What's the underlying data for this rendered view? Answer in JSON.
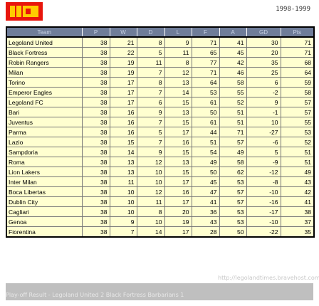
{
  "header": {
    "season": "1998-1999",
    "logo_colors": [
      "#e8160c",
      "#ffcc00"
    ]
  },
  "table": {
    "columns": [
      "Team",
      "P",
      "W",
      "D",
      "L",
      "F",
      "A",
      "GD",
      "Pts"
    ],
    "rows": [
      {
        "team": "Legoland United",
        "p": 38,
        "w": 21,
        "d": 8,
        "l": 9,
        "f": 71,
        "a": 41,
        "gd": 30,
        "pts": 71
      },
      {
        "team": "Black Fortress",
        "p": 38,
        "w": 22,
        "d": 5,
        "l": 11,
        "f": 65,
        "a": 45,
        "gd": 20,
        "pts": 71
      },
      {
        "team": "Robin Rangers",
        "p": 38,
        "w": 19,
        "d": 11,
        "l": 8,
        "f": 77,
        "a": 42,
        "gd": 35,
        "pts": 68
      },
      {
        "team": "Milan",
        "p": 38,
        "w": 19,
        "d": 7,
        "l": 12,
        "f": 71,
        "a": 46,
        "gd": 25,
        "pts": 64
      },
      {
        "team": "Torino",
        "p": 38,
        "w": 17,
        "d": 8,
        "l": 13,
        "f": 64,
        "a": 58,
        "gd": 6,
        "pts": 59
      },
      {
        "team": "Emperor Eagles",
        "p": 38,
        "w": 17,
        "d": 7,
        "l": 14,
        "f": 53,
        "a": 55,
        "gd": -2,
        "pts": 58
      },
      {
        "team": "Legoland FC",
        "p": 38,
        "w": 17,
        "d": 6,
        "l": 15,
        "f": 61,
        "a": 52,
        "gd": 9,
        "pts": 57
      },
      {
        "team": "Bari",
        "p": 38,
        "w": 16,
        "d": 9,
        "l": 13,
        "f": 50,
        "a": 51,
        "gd": -1,
        "pts": 57
      },
      {
        "team": "Juventus",
        "p": 38,
        "w": 16,
        "d": 7,
        "l": 15,
        "f": 61,
        "a": 51,
        "gd": 10,
        "pts": 55
      },
      {
        "team": "Parma",
        "p": 38,
        "w": 16,
        "d": 5,
        "l": 17,
        "f": 44,
        "a": 71,
        "gd": -27,
        "pts": 53
      },
      {
        "team": "Lazio",
        "p": 38,
        "w": 15,
        "d": 7,
        "l": 16,
        "f": 51,
        "a": 57,
        "gd": -6,
        "pts": 52
      },
      {
        "team": "Sampdoria",
        "p": 38,
        "w": 14,
        "d": 9,
        "l": 15,
        "f": 54,
        "a": 49,
        "gd": 5,
        "pts": 51
      },
      {
        "team": "Roma",
        "p": 38,
        "w": 13,
        "d": 12,
        "l": 13,
        "f": 49,
        "a": 58,
        "gd": -9,
        "pts": 51
      },
      {
        "team": "Lion Lakers",
        "p": 38,
        "w": 13,
        "d": 10,
        "l": 15,
        "f": 50,
        "a": 62,
        "gd": -12,
        "pts": 49
      },
      {
        "team": "Inter Milan",
        "p": 38,
        "w": 11,
        "d": 10,
        "l": 17,
        "f": 45,
        "a": 53,
        "gd": -8,
        "pts": 43
      },
      {
        "team": "Boca Libertas",
        "p": 38,
        "w": 10,
        "d": 12,
        "l": 16,
        "f": 47,
        "a": 57,
        "gd": -10,
        "pts": 42
      },
      {
        "team": "Dublin City",
        "p": 38,
        "w": 10,
        "d": 11,
        "l": 17,
        "f": 41,
        "a": 57,
        "gd": -16,
        "pts": 41
      },
      {
        "team": "Cagliari",
        "p": 38,
        "w": 10,
        "d": 8,
        "l": 20,
        "f": 36,
        "a": 53,
        "gd": -17,
        "pts": 38
      },
      {
        "team": "Genoa",
        "p": 38,
        "w": 9,
        "d": 10,
        "l": 19,
        "f": 43,
        "a": 53,
        "gd": -10,
        "pts": 37
      },
      {
        "team": "Fiorentina",
        "p": 38,
        "w": 7,
        "d": 14,
        "l": 17,
        "f": 28,
        "a": 50,
        "gd": -22,
        "pts": 35
      }
    ]
  },
  "footer": {
    "url": "http://legolandtimes.bravehost.com",
    "result": "Play-off Result - Legoland United 2 Black Fortress Barbarians 1",
    "watermark": "http://legolandtimes.bravehost.com"
  }
}
